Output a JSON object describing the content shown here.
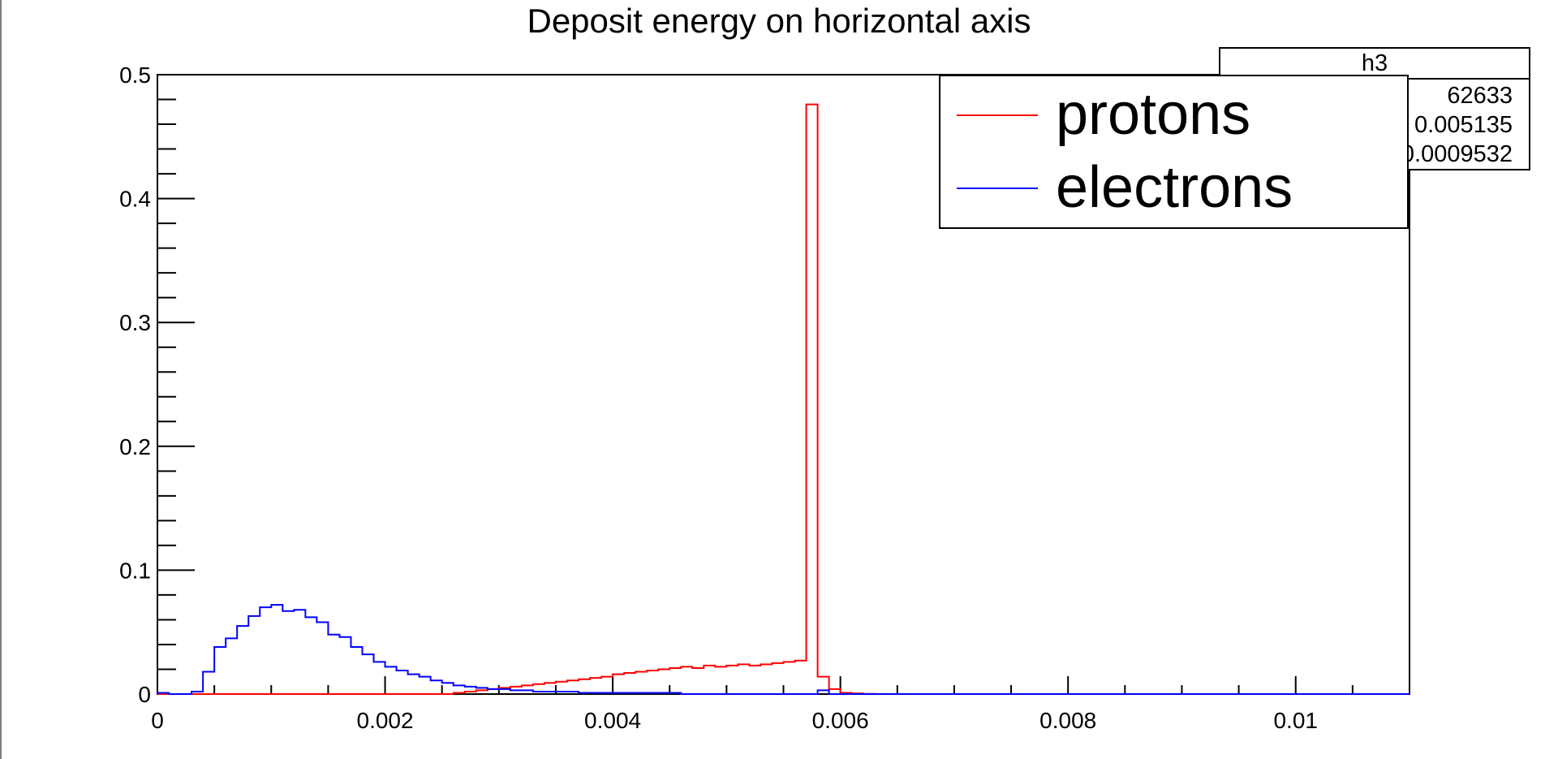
{
  "chart_data": {
    "type": "histogram",
    "title": "Deposit energy on horizontal axis",
    "xlabel": "",
    "ylabel": "",
    "xlim": [
      0,
      0.011
    ],
    "ylim": [
      0,
      0.5
    ],
    "bin_width": 0.0001,
    "x_ticks": [
      "0",
      "0.002",
      "0.004",
      "0.006",
      "0.008",
      "0.01"
    ],
    "y_ticks": [
      "0",
      "0.1",
      "0.2",
      "0.3",
      "0.4",
      "0.5"
    ],
    "legend_position": "top-right",
    "series": [
      {
        "name": "protons",
        "color": "#ff0000",
        "values": [
          0,
          0,
          0,
          0,
          0,
          0,
          0,
          0,
          0,
          0,
          0,
          0,
          0,
          0,
          0,
          0,
          0,
          0,
          0,
          0,
          0,
          0,
          0,
          0,
          0,
          0,
          0.001,
          0.002,
          0.003,
          0.004,
          0.005,
          0.006,
          0.007,
          0.008,
          0.009,
          0.01,
          0.011,
          0.012,
          0.013,
          0.014,
          0.016,
          0.017,
          0.018,
          0.019,
          0.02,
          0.021,
          0.022,
          0.021,
          0.023,
          0.022,
          0.023,
          0.024,
          0.023,
          0.024,
          0.025,
          0.026,
          0.027,
          0.476,
          0.014,
          0.004,
          0.001,
          0.0005,
          0.0002,
          0.0001,
          0,
          0,
          0,
          0,
          0,
          0,
          0,
          0,
          0,
          0,
          0,
          0,
          0,
          0,
          0,
          0,
          0,
          0,
          0,
          0,
          0,
          0,
          0,
          0,
          0,
          0,
          0,
          0,
          0,
          0,
          0,
          0,
          0,
          0,
          0,
          0,
          0,
          0,
          0,
          0,
          0,
          0,
          0,
          0,
          0,
          0
        ]
      },
      {
        "name": "electrons",
        "color": "#0000ff",
        "values": [
          0.001,
          0,
          0,
          0.002,
          0.018,
          0.038,
          0.045,
          0.055,
          0.063,
          0.07,
          0.072,
          0.067,
          0.068,
          0.062,
          0.058,
          0.048,
          0.046,
          0.038,
          0.032,
          0.026,
          0.022,
          0.019,
          0.016,
          0.014,
          0.011,
          0.009,
          0.007,
          0.006,
          0.005,
          0.004,
          0.004,
          0.003,
          0.003,
          0.002,
          0.002,
          0.002,
          0.002,
          0.001,
          0.001,
          0.001,
          0.001,
          0.001,
          0.001,
          0.001,
          0.001,
          0.001,
          0,
          0,
          0,
          0,
          0,
          0,
          0,
          0,
          0,
          0,
          0,
          0,
          0.003,
          0,
          0,
          0,
          0,
          0,
          0,
          0,
          0,
          0,
          0,
          0,
          0,
          0,
          0,
          0,
          0,
          0,
          0,
          0,
          0,
          0,
          0,
          0,
          0,
          0,
          0,
          0,
          0,
          0,
          0,
          0,
          0,
          0,
          0,
          0,
          0,
          0,
          0,
          0,
          0,
          0,
          0,
          0,
          0,
          0,
          0,
          0,
          0,
          0,
          0,
          0
        ]
      }
    ],
    "stats": {
      "name": "h3",
      "values": [
        "62633",
        "0.005135",
        "0.0009532"
      ]
    }
  }
}
